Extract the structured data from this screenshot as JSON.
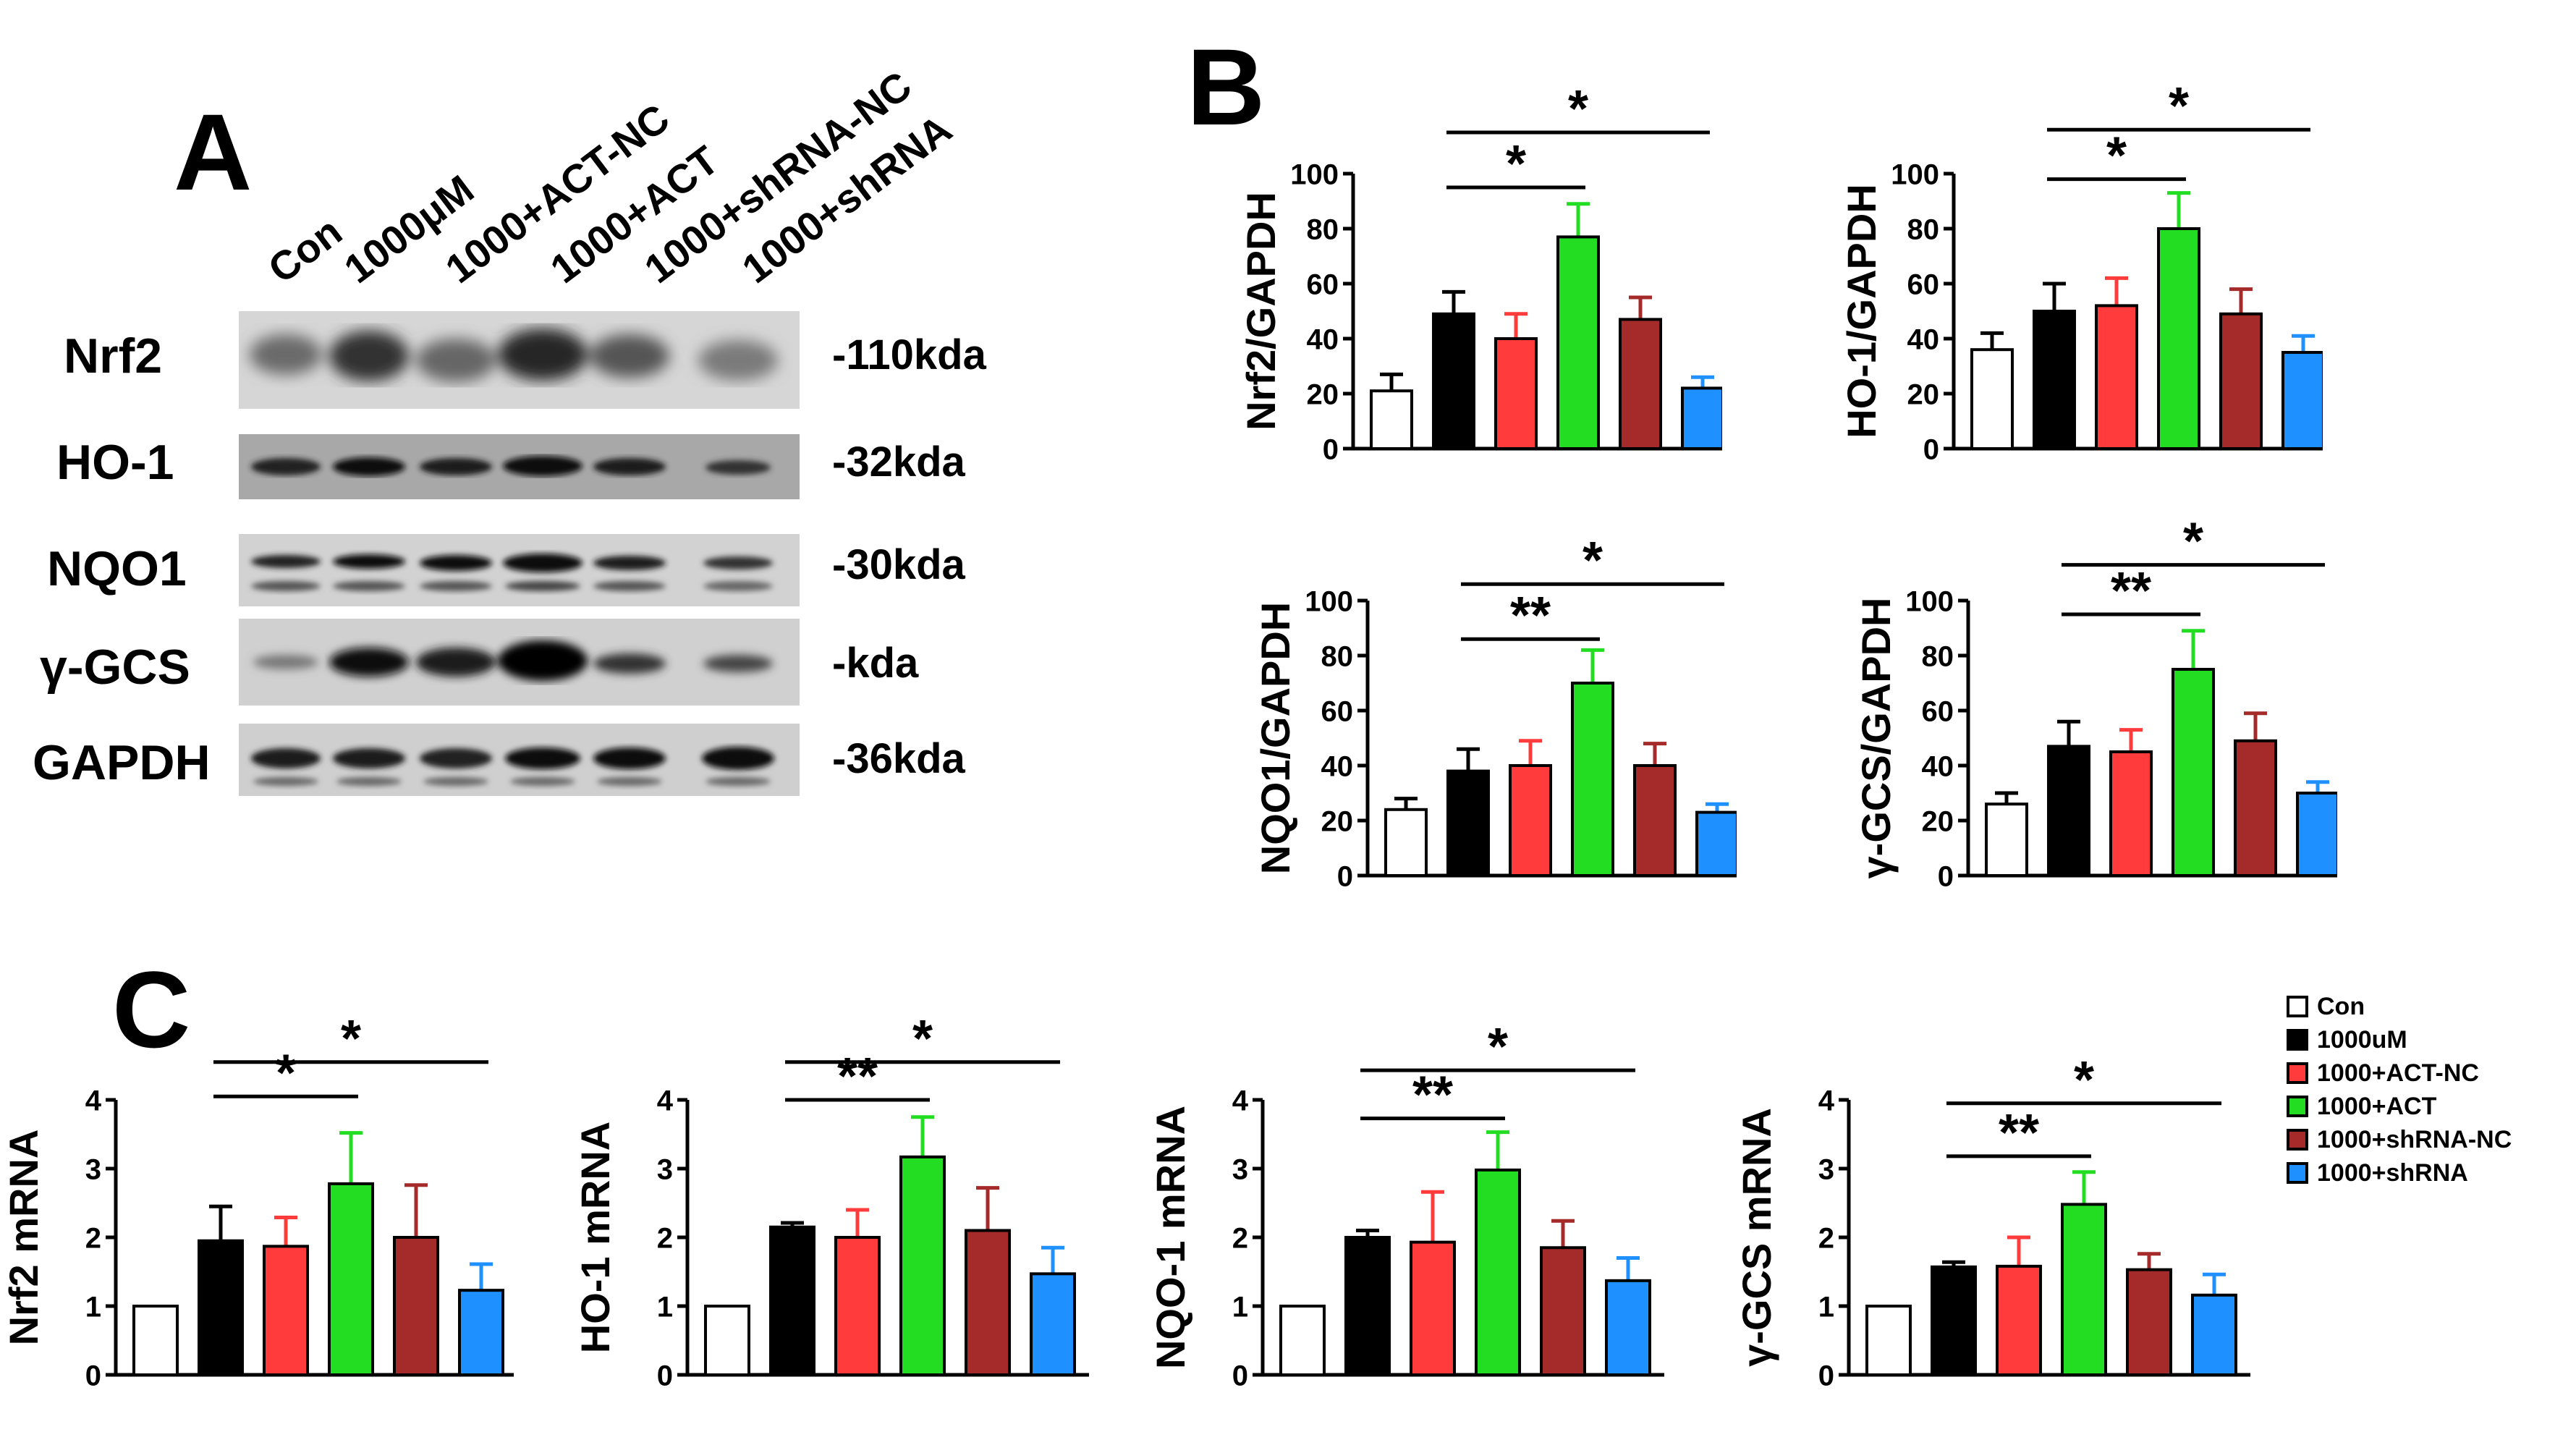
{
  "panels": {
    "A": "A",
    "B": "B",
    "C": "C"
  },
  "western_blot": {
    "lanes": [
      "Con",
      "1000μM",
      "1000+ACT-NC",
      "1000+ACT",
      "1000+shRNA-NC",
      "1000+shRNA"
    ],
    "rows": [
      {
        "protein": "Nrf2",
        "size": "-110kda"
      },
      {
        "protein": "HO-1",
        "size": "-32kda"
      },
      {
        "protein": "NQO1",
        "size": "-30kda"
      },
      {
        "protein": "γ-GCS",
        "size": "-kda"
      },
      {
        "protein": "GAPDH",
        "size": "-36kda"
      }
    ]
  },
  "legend": {
    "items": [
      {
        "label": "Con",
        "color": "#ffffff"
      },
      {
        "label": "1000uM",
        "color": "#000000"
      },
      {
        "label": "1000+ACT-NC",
        "color": "#ff3b3b"
      },
      {
        "label": "1000+ACT",
        "color": "#22dd22"
      },
      {
        "label": "1000+shRNA-NC",
        "color": "#a52a2a"
      },
      {
        "label": "1000+shRNA",
        "color": "#1e90ff"
      }
    ]
  },
  "chart_data": [
    {
      "panel": "B",
      "type": "bar",
      "ylabel": "Nrf2/GAPDH",
      "ylim": [
        0,
        100
      ],
      "yticks": [
        0,
        20,
        40,
        60,
        80,
        100
      ],
      "categories": [
        "Con",
        "1000uM",
        "1000+ACT-NC",
        "1000+ACT",
        "1000+shRNA-NC",
        "1000+shRNA"
      ],
      "values": [
        21,
        49,
        40,
        77,
        47,
        22
      ],
      "errors": [
        6,
        8,
        9,
        12,
        8,
        4
      ],
      "annotations": [
        {
          "label": "*",
          "from": 1,
          "to": 3,
          "y": 95
        },
        {
          "label": "*",
          "from": 1,
          "to": 5,
          "y": 115
        }
      ]
    },
    {
      "panel": "B",
      "type": "bar",
      "ylabel": "HO-1/GAPDH",
      "ylim": [
        0,
        100
      ],
      "yticks": [
        0,
        20,
        40,
        60,
        80,
        100
      ],
      "categories": [
        "Con",
        "1000uM",
        "1000+ACT-NC",
        "1000+ACT",
        "1000+shRNA-NC",
        "1000+shRNA"
      ],
      "values": [
        36,
        50,
        52,
        80,
        49,
        35
      ],
      "errors": [
        6,
        10,
        10,
        13,
        9,
        6
      ],
      "annotations": [
        {
          "label": "*",
          "from": 1,
          "to": 3,
          "y": 98
        },
        {
          "label": "*",
          "from": 1,
          "to": 5,
          "y": 116
        }
      ]
    },
    {
      "panel": "B",
      "type": "bar",
      "ylabel": "NQO1/GAPDH",
      "ylim": [
        0,
        100
      ],
      "yticks": [
        0,
        20,
        40,
        60,
        80,
        100
      ],
      "categories": [
        "Con",
        "1000uM",
        "1000+ACT-NC",
        "1000+ACT",
        "1000+shRNA-NC",
        "1000+shRNA"
      ],
      "values": [
        24,
        38,
        40,
        70,
        40,
        23
      ],
      "errors": [
        4,
        8,
        9,
        12,
        8,
        3
      ],
      "annotations": [
        {
          "label": "**",
          "from": 1,
          "to": 3,
          "y": 86
        },
        {
          "label": "*",
          "from": 1,
          "to": 5,
          "y": 106
        }
      ]
    },
    {
      "panel": "B",
      "type": "bar",
      "ylabel": "γ-GCS/GAPDH",
      "ylim": [
        0,
        100
      ],
      "yticks": [
        0,
        20,
        40,
        60,
        80,
        100
      ],
      "categories": [
        "Con",
        "1000uM",
        "1000+ACT-NC",
        "1000+ACT",
        "1000+shRNA-NC",
        "1000+shRNA"
      ],
      "values": [
        26,
        47,
        45,
        75,
        49,
        30
      ],
      "errors": [
        4,
        9,
        8,
        14,
        10,
        4
      ],
      "annotations": [
        {
          "label": "**",
          "from": 1,
          "to": 3,
          "y": 95
        },
        {
          "label": "*",
          "from": 1,
          "to": 5,
          "y": 113
        }
      ]
    },
    {
      "panel": "C",
      "type": "bar",
      "ylabel": "Nrf2 mRNA",
      "ylim": [
        0,
        4
      ],
      "yticks": [
        0,
        1,
        2,
        3,
        4
      ],
      "categories": [
        "Con",
        "1000uM",
        "1000+ACT-NC",
        "1000+ACT",
        "1000+shRNA-NC",
        "1000+shRNA"
      ],
      "values": [
        1.0,
        1.95,
        1.87,
        2.78,
        2.0,
        1.23
      ],
      "errors": [
        0,
        0.5,
        0.42,
        0.74,
        0.76,
        0.38
      ],
      "annotations": [
        {
          "label": "*",
          "from": 1,
          "to": 3,
          "y": 4.05
        },
        {
          "label": "*",
          "from": 1,
          "to": 5,
          "y": 4.55
        }
      ]
    },
    {
      "panel": "C",
      "type": "bar",
      "ylabel": "HO-1 mRNA",
      "ylim": [
        0,
        4
      ],
      "yticks": [
        0,
        1,
        2,
        3,
        4
      ],
      "categories": [
        "Con",
        "1000uM",
        "1000+ACT-NC",
        "1000+ACT",
        "1000+shRNA-NC",
        "1000+shRNA"
      ],
      "values": [
        1.0,
        2.15,
        2.0,
        3.17,
        2.1,
        1.47
      ],
      "errors": [
        0,
        0.06,
        0.4,
        0.58,
        0.62,
        0.38
      ],
      "annotations": [
        {
          "label": "**",
          "from": 1,
          "to": 3,
          "y": 4.0
        },
        {
          "label": "*",
          "from": 1,
          "to": 5,
          "y": 4.55
        }
      ]
    },
    {
      "panel": "C",
      "type": "bar",
      "ylabel": "NQO-1 mRNA",
      "ylim": [
        0,
        4
      ],
      "yticks": [
        0,
        1,
        2,
        3,
        4
      ],
      "categories": [
        "Con",
        "1000uM",
        "1000+ACT-NC",
        "1000+ACT",
        "1000+shRNA-NC",
        "1000+shRNA"
      ],
      "values": [
        1.0,
        2.0,
        1.93,
        2.98,
        1.85,
        1.37
      ],
      "errors": [
        0,
        0.1,
        0.73,
        0.55,
        0.39,
        0.33
      ],
      "annotations": [
        {
          "label": "**",
          "from": 1,
          "to": 3,
          "y": 3.73
        },
        {
          "label": "*",
          "from": 1,
          "to": 5,
          "y": 4.43
        }
      ]
    },
    {
      "panel": "C",
      "type": "bar",
      "ylabel": "γ-GCS mRNA",
      "ylim": [
        0,
        4
      ],
      "yticks": [
        0,
        1,
        2,
        3,
        4
      ],
      "categories": [
        "Con",
        "1000uM",
        "1000+ACT-NC",
        "1000+ACT",
        "1000+shRNA-NC",
        "1000+shRNA"
      ],
      "values": [
        1.0,
        1.57,
        1.58,
        2.48,
        1.53,
        1.16
      ],
      "errors": [
        0,
        0.07,
        0.42,
        0.47,
        0.23,
        0.3
      ],
      "annotations": [
        {
          "label": "**",
          "from": 1,
          "to": 3,
          "y": 3.18
        },
        {
          "label": "*",
          "from": 1,
          "to": 5,
          "y": 3.95
        }
      ]
    }
  ]
}
